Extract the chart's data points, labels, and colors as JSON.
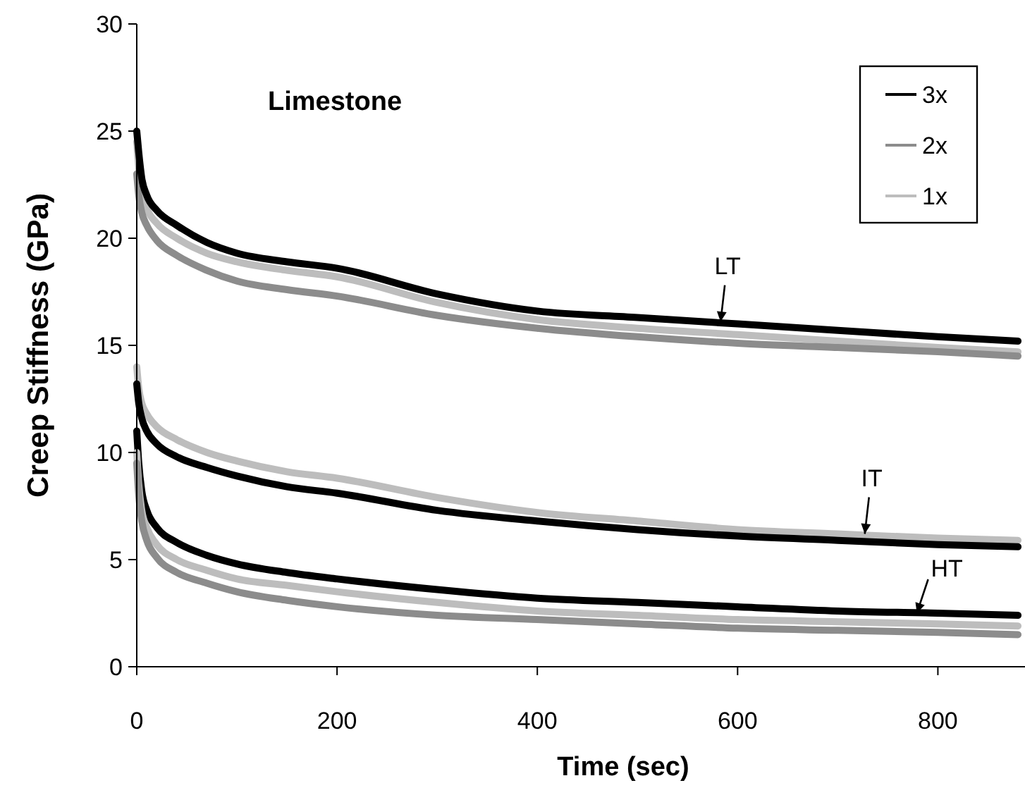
{
  "chart_data": {
    "type": "line",
    "title": "Limestone",
    "xlabel": "Time (sec)",
    "ylabel": "Creep Stiffness (GPa)",
    "x": [
      0,
      2,
      5,
      10,
      20,
      40,
      70,
      100,
      150,
      200,
      300,
      400,
      500,
      600,
      700,
      800,
      880
    ],
    "xlim": [
      0,
      887
    ],
    "xticks": [
      0,
      200,
      400,
      600,
      800
    ],
    "ylim": [
      0,
      30
    ],
    "yticks": [
      0,
      5,
      10,
      15,
      20,
      25,
      30
    ],
    "grid": false,
    "legend": "top right",
    "line_style": "solid",
    "series": [
      {
        "name": "3x",
        "color": "#000000",
        "values": [
          25,
          24,
          22.8,
          22,
          21.3,
          20.6,
          19.8,
          19.3,
          18.9,
          18.6,
          17.4,
          16.6,
          16.3,
          16.0,
          15.7,
          15.4,
          15.2
        ]
      },
      {
        "name": "2x",
        "color": "#8c8c8c",
        "values": [
          23,
          22,
          21.2,
          20.6,
          19.9,
          19.2,
          18.5,
          18.0,
          17.6,
          17.3,
          16.4,
          15.8,
          15.4,
          15.1,
          14.9,
          14.7,
          14.5
        ]
      },
      {
        "name": "1x",
        "color": "#bdbdbd",
        "values": [
          24.5,
          23.3,
          22.2,
          21.4,
          20.7,
          20.0,
          19.3,
          18.9,
          18.5,
          18.2,
          17.0,
          16.2,
          15.8,
          15.5,
          15.2,
          14.9,
          14.7
        ]
      },
      {
        "color": "#000000",
        "values": [
          13.2,
          12.3,
          11.6,
          11.0,
          10.4,
          9.8,
          9.3,
          8.9,
          8.4,
          8.1,
          7.3,
          6.8,
          6.4,
          6.1,
          5.9,
          5.7,
          5.6
        ]
      },
      {
        "color": "#bdbdbd",
        "values": [
          14,
          13,
          12.3,
          11.8,
          11.2,
          10.6,
          10.0,
          9.6,
          9.1,
          8.8,
          7.9,
          7.2,
          6.8,
          6.4,
          6.2,
          6.0,
          5.9
        ]
      },
      {
        "color": "#8c8c8c",
        "values": [
          9.5,
          8,
          6.8,
          5.9,
          5.1,
          4.4,
          3.9,
          3.5,
          3.1,
          2.8,
          2.4,
          2.2,
          2.0,
          1.8,
          1.7,
          1.6,
          1.5
        ]
      },
      {
        "color": "#bdbdbd",
        "values": [
          10,
          8.5,
          7.3,
          6.5,
          5.7,
          5.0,
          4.5,
          4.1,
          3.8,
          3.5,
          3.0,
          2.6,
          2.4,
          2.2,
          2.1,
          2.0,
          1.9
        ]
      },
      {
        "color": "#000000",
        "values": [
          11,
          9.5,
          8.2,
          7.3,
          6.5,
          5.8,
          5.2,
          4.8,
          4.4,
          4.1,
          3.6,
          3.2,
          3.0,
          2.8,
          2.6,
          2.5,
          2.4
        ]
      }
    ],
    "annotations": [
      {
        "text": "LT",
        "x": 583,
        "y": 16.1
      },
      {
        "text": "IT",
        "x": 727,
        "y": 6.2
      },
      {
        "text": "HT",
        "x": 779,
        "y": 2.5
      }
    ]
  }
}
